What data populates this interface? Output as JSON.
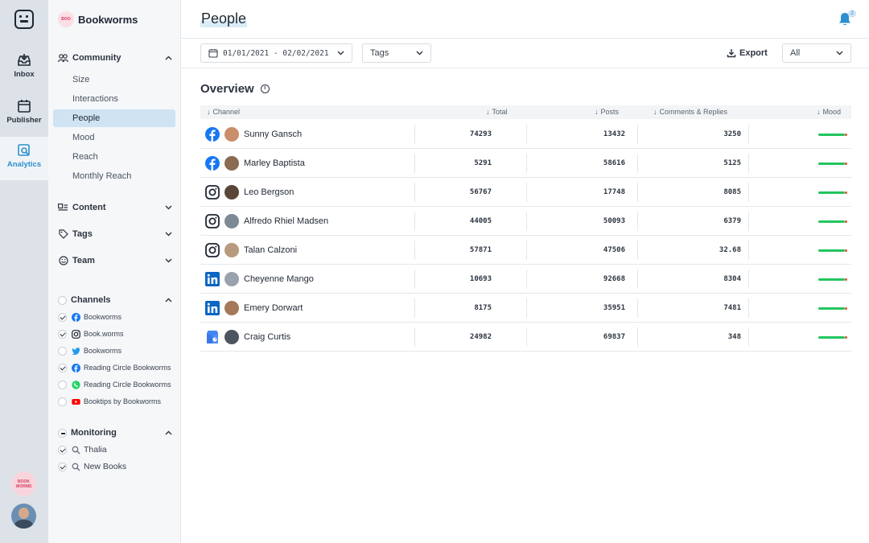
{
  "rail": {
    "items": [
      {
        "label": "Inbox"
      },
      {
        "label": "Publisher"
      },
      {
        "label": "Analytics"
      }
    ],
    "brand_badge": "BOOK WORMS"
  },
  "sidebar": {
    "brand": "Bookworms",
    "brand_badge": "BOO",
    "community": {
      "label": "Community",
      "items": [
        "Size",
        "Interactions",
        "People",
        "Mood",
        "Reach",
        "Monthly Reach"
      ],
      "active": "People"
    },
    "sections": [
      {
        "label": "Content"
      },
      {
        "label": "Tags"
      },
      {
        "label": "Team"
      }
    ],
    "channels": {
      "label": "Channels",
      "items": [
        {
          "label": "Bookworms",
          "network": "facebook",
          "checked": true
        },
        {
          "label": "Book.worms",
          "network": "instagram",
          "checked": true
        },
        {
          "label": "Bookworms",
          "network": "twitter",
          "checked": false
        },
        {
          "label": "Reading Circle Bookworms",
          "network": "facebook",
          "checked": true
        },
        {
          "label": "Reading Circle Bookworms",
          "network": "whatsapp",
          "checked": false
        },
        {
          "label": "Booktips by Bookworms",
          "network": "youtube",
          "checked": false
        }
      ]
    },
    "monitoring": {
      "label": "Monitoring",
      "items": [
        {
          "label": "Thalia",
          "checked": true
        },
        {
          "label": "New Books",
          "checked": true
        }
      ]
    }
  },
  "header": {
    "title": "People",
    "notification_count": "2"
  },
  "toolbar": {
    "date_range": "01/01/2021 - 02/02/2021",
    "tags_label": "Tags",
    "export_label": "Export",
    "filter_value": "All"
  },
  "overview": {
    "title": "Overview",
    "info_glyph": "i",
    "columns": [
      "Channel",
      "Total",
      "Posts",
      "Comments & Replies",
      "Mood"
    ],
    "rows": [
      {
        "network": "facebook",
        "name": "Sunny Gansch",
        "total": "74293",
        "posts": "13432",
        "comments": "3250"
      },
      {
        "network": "facebook",
        "name": "Marley Baptista",
        "total": "5291",
        "posts": "58616",
        "comments": "5125"
      },
      {
        "network": "instagram",
        "name": "Leo Bergson",
        "total": "56767",
        "posts": "17748",
        "comments": "8085"
      },
      {
        "network": "instagram",
        "name": "Alfredo Rhiel Madsen",
        "total": "44005",
        "posts": "50093",
        "comments": "6379"
      },
      {
        "network": "instagram",
        "name": "Talan Calzoni",
        "total": "57871",
        "posts": "47506",
        "comments": "32.68"
      },
      {
        "network": "linkedin",
        "name": "Cheyenne Mango",
        "total": "10693",
        "posts": "92668",
        "comments": "8304"
      },
      {
        "network": "linkedin",
        "name": "Emery Dorwart",
        "total": "8175",
        "posts": "35951",
        "comments": "7481"
      },
      {
        "network": "google-my-business",
        "name": "Craig Curtis",
        "total": "24982",
        "posts": "69837",
        "comments": "348"
      }
    ]
  },
  "colors": {
    "accent": "#2d8fd0",
    "active_bg": "#cfe3f2",
    "mood_positive": "#22c55e",
    "mood_negative": "#e74c3c",
    "facebook": "#1877f2",
    "linkedin": "#0a66c2"
  }
}
